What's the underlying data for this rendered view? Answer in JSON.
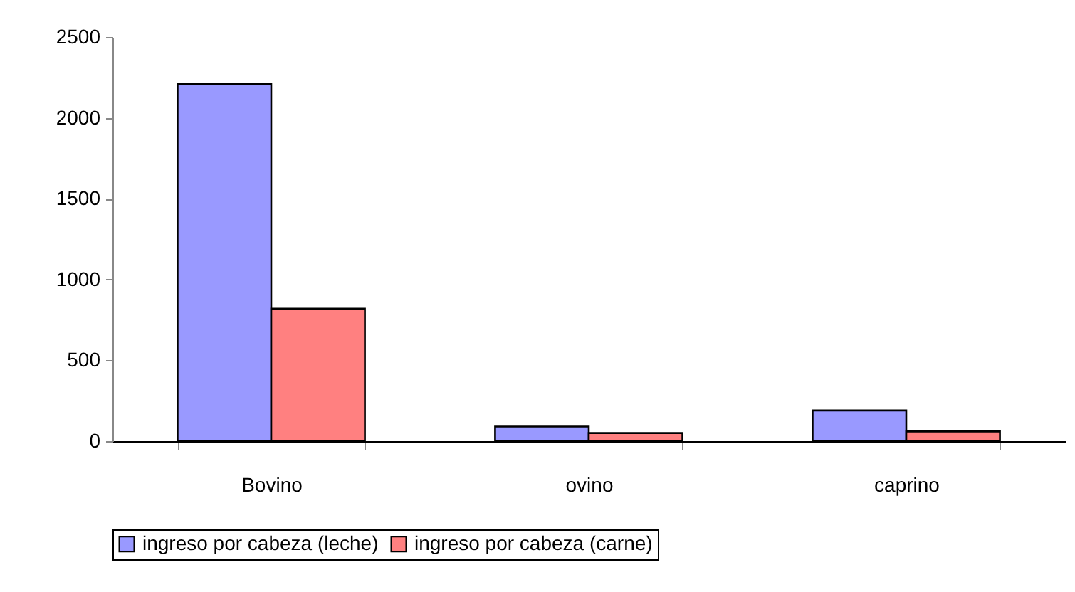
{
  "chart_data": {
    "type": "bar",
    "categories": [
      "Bovino",
      "ovino",
      "caprino"
    ],
    "series": [
      {
        "name": "ingreso por cabeza (leche)",
        "color": "#9999ff",
        "values": [
          2210,
          90,
          190
        ]
      },
      {
        "name": "ingreso por cabeza (carne)",
        "color": "#ff8080",
        "values": [
          820,
          50,
          60
        ]
      }
    ],
    "ylim": [
      0,
      2500
    ],
    "yticks": [
      0,
      500,
      1000,
      1500,
      2000,
      2500
    ],
    "grid": false,
    "legend": "bottom"
  }
}
